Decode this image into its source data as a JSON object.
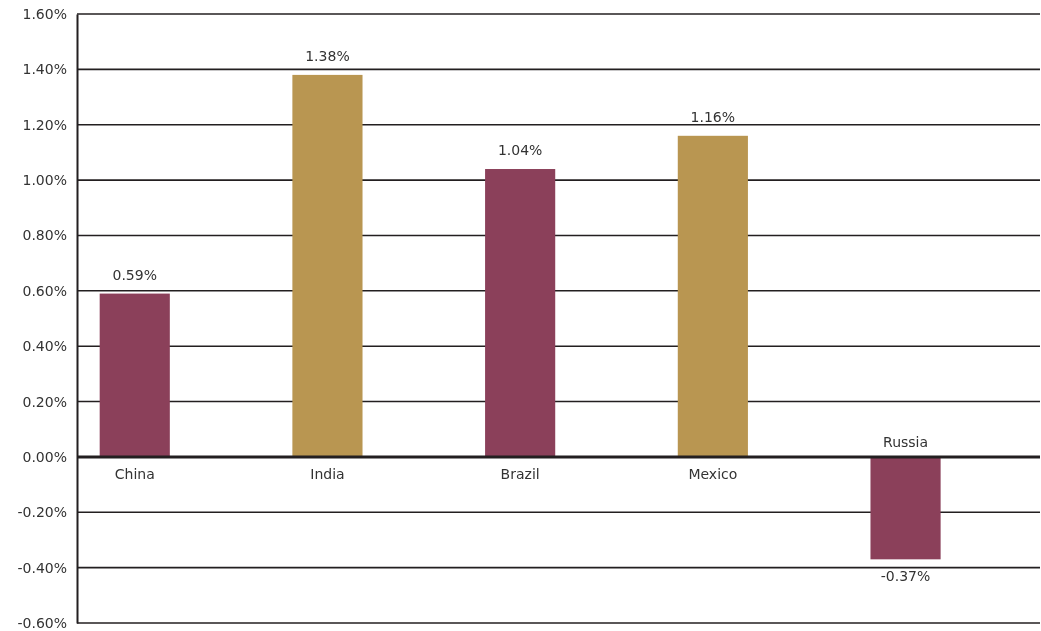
{
  "chart_data": {
    "type": "bar",
    "categories": [
      "China",
      "India",
      "Brazil",
      "Mexico",
      "Russia"
    ],
    "values": [
      0.59,
      1.38,
      1.04,
      1.16,
      -0.37
    ],
    "colors": [
      "#8b405a",
      "#b99651",
      "#8b405a",
      "#b99651",
      "#8b405a"
    ],
    "value_labels": [
      "0.59%",
      "1.38%",
      "1.04%",
      "1.16%",
      "-0.37%"
    ],
    "ylim": [
      -0.6,
      1.6
    ],
    "yticks": [
      {
        "value": -0.6,
        "label": "-0.60%"
      },
      {
        "value": -0.4,
        "label": "-0.40%"
      },
      {
        "value": -0.2,
        "label": "-0.20%"
      },
      {
        "value": 0,
        "label": "0.00%"
      },
      {
        "value": 0.2,
        "label": "0.20%"
      },
      {
        "value": 0.4,
        "label": "0.40%"
      },
      {
        "value": 0.6,
        "label": "0.60%"
      },
      {
        "value": 0.8,
        "label": "0.80%"
      },
      {
        "value": 1.0,
        "label": "1.00%"
      },
      {
        "value": 1.2,
        "label": "1.20%"
      },
      {
        "value": 1.4,
        "label": "1.40%"
      },
      {
        "value": 1.6,
        "label": "1.60%"
      }
    ],
    "grid": "y"
  }
}
